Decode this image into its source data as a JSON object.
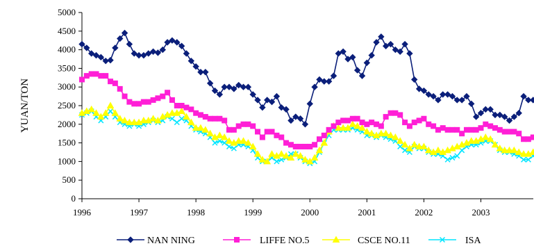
{
  "chart_data": {
    "type": "line",
    "title": "",
    "xlabel": "",
    "ylabel": "YUAN/TON",
    "xlim": [
      1996,
      2003.92
    ],
    "ylim": [
      0,
      5000
    ],
    "y_ticks": [
      0,
      500,
      1000,
      1500,
      2000,
      2500,
      3000,
      3500,
      4000,
      4500,
      5000
    ],
    "x_ticks": [
      1996,
      1997,
      1998,
      1999,
      2000,
      2001,
      2002,
      2003
    ],
    "grid": false,
    "legend": "bottom",
    "x": [
      1996.0,
      1996.083,
      1996.167,
      1996.25,
      1996.333,
      1996.417,
      1996.5,
      1996.583,
      1996.667,
      1996.75,
      1996.833,
      1996.917,
      1997.0,
      1997.083,
      1997.167,
      1997.25,
      1997.333,
      1997.417,
      1997.5,
      1997.583,
      1997.667,
      1997.75,
      1997.833,
      1997.917,
      1998.0,
      1998.083,
      1998.167,
      1998.25,
      1998.333,
      1998.417,
      1998.5,
      1998.583,
      1998.667,
      1998.75,
      1998.833,
      1998.917,
      1999.0,
      1999.083,
      1999.167,
      1999.25,
      1999.333,
      1999.417,
      1999.5,
      1999.583,
      1999.667,
      1999.75,
      1999.833,
      1999.917,
      2000.0,
      2000.083,
      2000.167,
      2000.25,
      2000.333,
      2000.417,
      2000.5,
      2000.583,
      2000.667,
      2000.75,
      2000.833,
      2000.917,
      2001.0,
      2001.083,
      2001.167,
      2001.25,
      2001.333,
      2001.417,
      2001.5,
      2001.583,
      2001.667,
      2001.75,
      2001.833,
      2001.917,
      2002.0,
      2002.083,
      2002.167,
      2002.25,
      2002.333,
      2002.417,
      2002.5,
      2002.583,
      2002.667,
      2002.75,
      2002.833,
      2002.917,
      2003.0,
      2003.083,
      2003.167,
      2003.25,
      2003.333,
      2003.417,
      2003.5,
      2003.583,
      2003.667,
      2003.75,
      2003.833,
      2003.917
    ],
    "series": [
      {
        "name": "NAN NING",
        "color": "#0b1f7a",
        "marker": "diamond",
        "values": [
          4150,
          4050,
          3900,
          3850,
          3800,
          3700,
          3720,
          4050,
          4300,
          4450,
          4150,
          3900,
          3850,
          3850,
          3900,
          3950,
          3920,
          4000,
          4200,
          4250,
          4200,
          4100,
          3900,
          3700,
          3550,
          3400,
          3400,
          3100,
          2900,
          2800,
          3000,
          3000,
          2950,
          3050,
          3000,
          3000,
          2800,
          2650,
          2450,
          2650,
          2600,
          2750,
          2450,
          2400,
          2100,
          2200,
          2150,
          2000,
          2550,
          3000,
          3200,
          3150,
          3150,
          3300,
          3900,
          3950,
          3750,
          3800,
          3450,
          3300,
          3650,
          3850,
          4200,
          4350,
          4100,
          4150,
          4000,
          3950,
          4150,
          3900,
          3200,
          2950,
          2900,
          2800,
          2750,
          2650,
          2800,
          2800,
          2750,
          2650,
          2650,
          2750,
          2550,
          2200,
          2300,
          2400,
          2400,
          2250,
          2250,
          2200,
          2100,
          2200,
          2300,
          2750,
          2650,
          2650
        ]
      },
      {
        "name": "LIFFE NO.5",
        "color": "#ff1fd6",
        "marker": "square",
        "values": [
          3200,
          3300,
          3350,
          3350,
          3300,
          3300,
          3150,
          3100,
          2950,
          2750,
          2600,
          2550,
          2550,
          2600,
          2600,
          2650,
          2700,
          2750,
          2850,
          2650,
          2500,
          2500,
          2450,
          2400,
          2300,
          2250,
          2200,
          2150,
          2150,
          2150,
          2100,
          1850,
          1850,
          1950,
          2000,
          2000,
          1950,
          1800,
          1650,
          1800,
          1800,
          1700,
          1650,
          1500,
          1450,
          1400,
          1400,
          1400,
          1400,
          1450,
          1600,
          1700,
          1850,
          1950,
          2050,
          2100,
          2100,
          2150,
          2150,
          2050,
          2000,
          2050,
          2000,
          1950,
          2200,
          2300,
          2300,
          2250,
          2050,
          1950,
          2050,
          2100,
          2150,
          2000,
          1950,
          1850,
          1900,
          1850,
          1850,
          1850,
          1750,
          1850,
          1850,
          1850,
          1900,
          2000,
          1950,
          1900,
          1850,
          1800,
          1800,
          1800,
          1750,
          1600,
          1600,
          1650
        ]
      },
      {
        "name": "CSCE NO.11",
        "color": "#ffff00",
        "marker": "triangle",
        "values": [
          2300,
          2350,
          2400,
          2300,
          2200,
          2300,
          2500,
          2300,
          2150,
          2100,
          2050,
          2050,
          2050,
          2100,
          2100,
          2150,
          2100,
          2200,
          2250,
          2300,
          2300,
          2350,
          2200,
          2050,
          1900,
          1900,
          1850,
          1750,
          1650,
          1700,
          1650,
          1550,
          1500,
          1550,
          1550,
          1500,
          1400,
          1200,
          1050,
          1000,
          1200,
          1150,
          1200,
          1150,
          1100,
          1200,
          1150,
          1050,
          1000,
          1100,
          1300,
          1500,
          1800,
          1950,
          1900,
          1900,
          1900,
          2000,
          1950,
          1900,
          1800,
          1750,
          1700,
          1750,
          1750,
          1700,
          1650,
          1550,
          1450,
          1350,
          1450,
          1400,
          1400,
          1300,
          1250,
          1300,
          1250,
          1300,
          1350,
          1400,
          1450,
          1500,
          1550,
          1550,
          1600,
          1650,
          1600,
          1450,
          1350,
          1300,
          1300,
          1300,
          1250,
          1200,
          1200,
          1250
        ]
      },
      {
        "name": "ISA",
        "color": "#00e5ff",
        "marker": "x",
        "values": [
          2250,
          2300,
          2350,
          2200,
          2100,
          2200,
          2350,
          2200,
          2050,
          2000,
          1950,
          2000,
          1950,
          2000,
          2050,
          2100,
          2050,
          2100,
          2200,
          2150,
          2050,
          2150,
          2100,
          1950,
          1850,
          1800,
          1750,
          1650,
          1500,
          1550,
          1500,
          1400,
          1350,
          1450,
          1450,
          1400,
          1300,
          1100,
          1000,
          1000,
          1100,
          1000,
          1050,
          1100,
          1200,
          1200,
          1100,
          1000,
          950,
          1000,
          1250,
          1500,
          1700,
          1850,
          1850,
          1850,
          1850,
          1900,
          1850,
          1800,
          1700,
          1700,
          1650,
          1700,
          1650,
          1600,
          1550,
          1400,
          1300,
          1250,
          1400,
          1350,
          1350,
          1250,
          1200,
          1200,
          1150,
          1050,
          1100,
          1150,
          1300,
          1400,
          1450,
          1450,
          1500,
          1550,
          1550,
          1450,
          1300,
          1250,
          1250,
          1200,
          1150,
          1050,
          1050,
          1150
        ]
      }
    ]
  }
}
